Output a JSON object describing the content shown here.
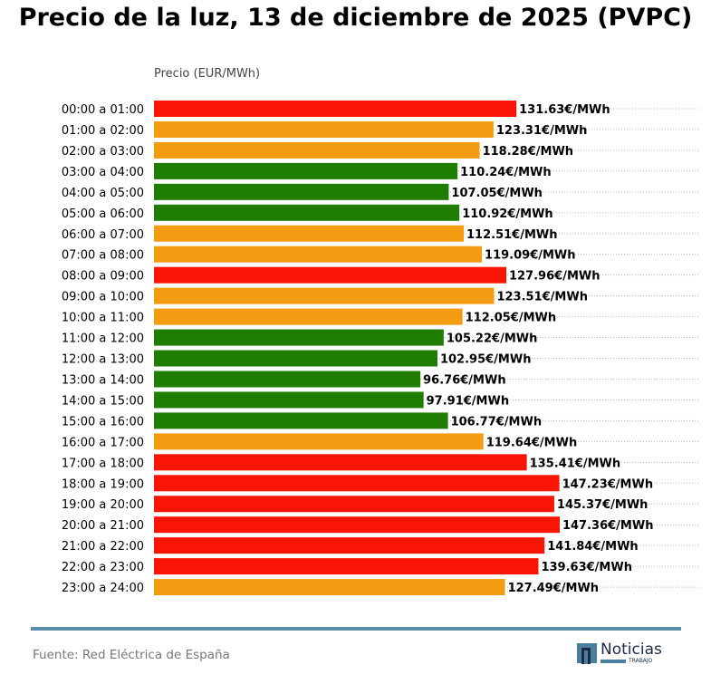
{
  "chart_data": {
    "type": "bar",
    "orientation": "horizontal",
    "title": "Precio de la luz, 13 de diciembre de 2025 (PVPC)",
    "xlabel": "Precio (EUR/MWh)",
    "value_suffix": "€/MWh",
    "xlim": [
      0,
      150
    ],
    "grid": "horizontal dotted",
    "categories": [
      "00:00 a 01:00",
      "01:00 a 02:00",
      "02:00 a 03:00",
      "03:00 a 04:00",
      "04:00 a 05:00",
      "05:00 a 06:00",
      "06:00 a 07:00",
      "07:00 a 08:00",
      "08:00 a 09:00",
      "09:00 a 10:00",
      "10:00 a 11:00",
      "11:00 a 12:00",
      "12:00 a 13:00",
      "13:00 a 14:00",
      "14:00 a 15:00",
      "15:00 a 16:00",
      "16:00 a 17:00",
      "17:00 a 18:00",
      "18:00 a 19:00",
      "19:00 a 20:00",
      "20:00 a 21:00",
      "21:00 a 22:00",
      "22:00 a 23:00",
      "23:00 a 24:00"
    ],
    "values": [
      131.63,
      123.31,
      118.28,
      110.24,
      107.05,
      110.92,
      112.51,
      119.09,
      127.96,
      123.51,
      112.05,
      105.22,
      102.95,
      96.76,
      97.91,
      106.77,
      119.64,
      135.41,
      147.23,
      145.37,
      147.36,
      141.84,
      139.63,
      127.49
    ],
    "levels": [
      "high",
      "mid",
      "mid",
      "low",
      "low",
      "low",
      "mid",
      "mid",
      "high",
      "mid",
      "mid",
      "low",
      "low",
      "low",
      "low",
      "low",
      "mid",
      "high",
      "high",
      "high",
      "high",
      "high",
      "high",
      "mid"
    ],
    "colors": {
      "high": "#f91505",
      "mid": "#f39c12",
      "low": "#1f7d02"
    }
  },
  "footer": {
    "source": "Fuente: Red Eléctrica de España",
    "logo_text": "Noticias",
    "logo_sub": "TRABAJO"
  }
}
